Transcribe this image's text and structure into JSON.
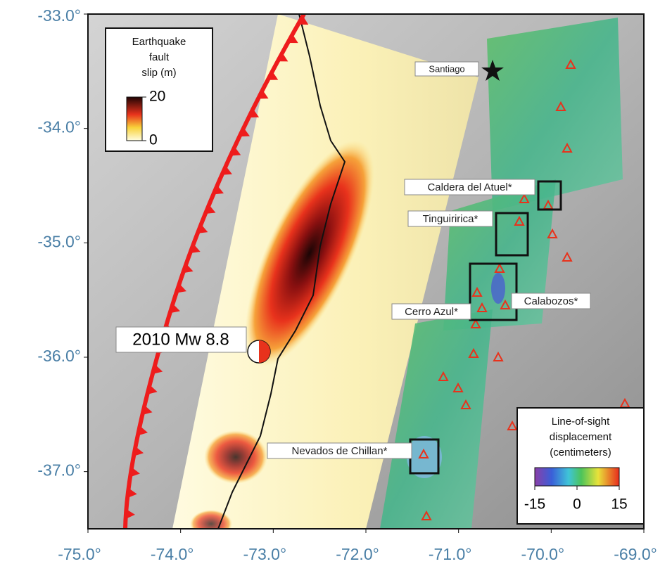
{
  "map": {
    "xlim": [
      -75,
      -69
    ],
    "ylim": [
      -37.5,
      -33
    ],
    "xticks": [
      {
        "value": -75,
        "label": "-75.0°"
      },
      {
        "value": -74,
        "label": "-74.0°"
      },
      {
        "value": -73,
        "label": "-73.0°"
      },
      {
        "value": -72,
        "label": "-72.0°"
      },
      {
        "value": -71,
        "label": "-71.0°"
      },
      {
        "value": -70,
        "label": "-70.0°"
      },
      {
        "value": -69,
        "label": "-69.0°"
      }
    ],
    "yticks": [
      {
        "value": -33,
        "label": "-33.0°"
      },
      {
        "value": -34,
        "label": "-34.0°"
      },
      {
        "value": -35,
        "label": "-35.0°"
      },
      {
        "value": -36,
        "label": "-36.0°"
      },
      {
        "value": -37,
        "label": "-37.0°"
      }
    ],
    "places": [
      "Santiago",
      "Caldera del Atuel*",
      "Tinguiririca*",
      "Calabozos*",
      "Cerro Azul*",
      "Nevados de Chillan*"
    ],
    "event": "2010 Mw 8.8",
    "slip_legend": {
      "title": [
        "Earthquake",
        "fault",
        "slip (m)"
      ],
      "lim": [
        0,
        20
      ],
      "ticks": [
        0,
        20
      ]
    },
    "los_legend": {
      "title": [
        "Line-of-sight",
        "displacement",
        "(centimeters)"
      ],
      "lim": [
        -15,
        15
      ],
      "ticks": [
        -15,
        0,
        15
      ]
    }
  }
}
